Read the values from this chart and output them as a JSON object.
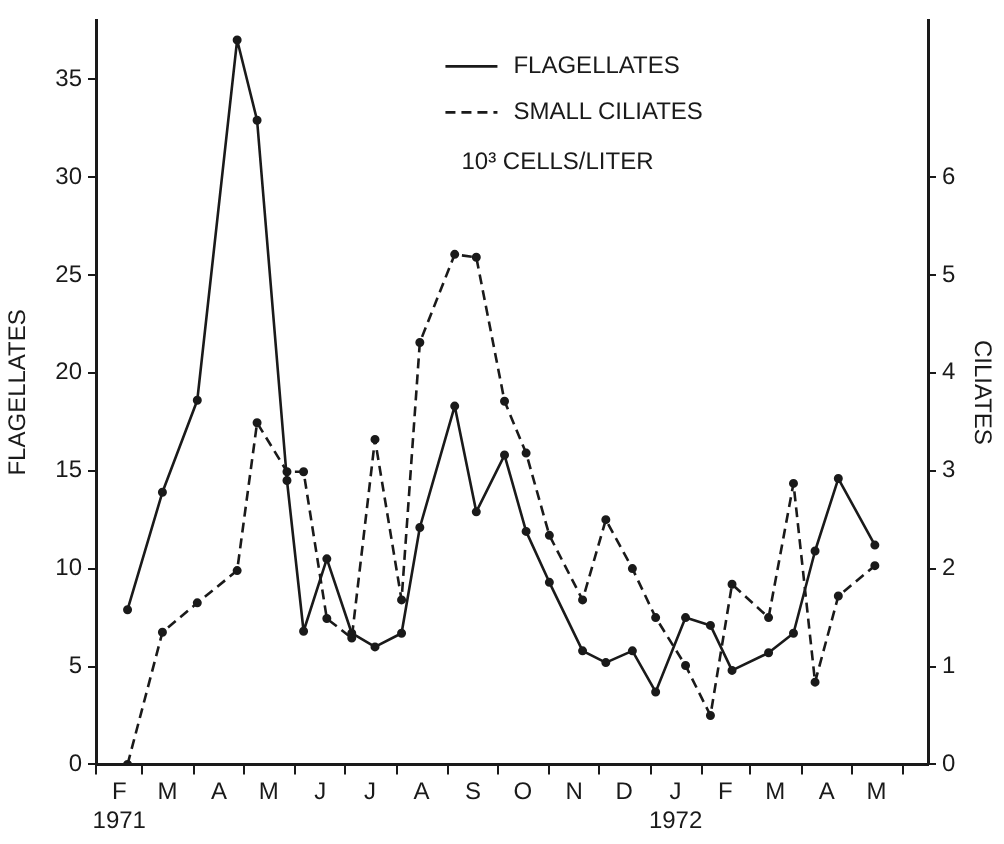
{
  "chart_data": {
    "type": "line",
    "x": [
      "1971-02-20",
      "1971-03-13",
      "1971-04-03",
      "1971-04-27",
      "1971-05-09",
      "1971-05-27",
      "1971-06-06",
      "1971-06-20",
      "1971-07-05",
      "1971-07-19",
      "1971-08-04",
      "1971-08-15",
      "1971-09-05",
      "1971-09-18",
      "1971-10-05",
      "1971-10-18",
      "1971-11-01",
      "1971-11-21",
      "1971-12-05",
      "1971-12-21",
      "1972-01-04",
      "1972-01-22",
      "1972-02-06",
      "1972-02-19",
      "1972-03-12",
      "1972-03-27",
      "1972-04-09",
      "1972-04-23",
      "1972-05-15"
    ],
    "series": [
      {
        "name": "FLAGELLATES",
        "color": "#1a1a1a",
        "line_style": "solid",
        "values": [
          7.9,
          13.9,
          18.6,
          37,
          32.9,
          14.5,
          6.8,
          10.5,
          6.7,
          6.0,
          6.7,
          12.1,
          18.3,
          12.9,
          15.8,
          11.9,
          9.3,
          5.8,
          5.2,
          5.8,
          3.7,
          7.5,
          7.1,
          4.8,
          5.7,
          6.7,
          10.9,
          14.6,
          11.2
        ]
      },
      {
        "name": "SMALL CILIATES",
        "color": "#1a1a1a",
        "line_style": "dashed",
        "axis": "y2",
        "values": [
          0,
          1.35,
          1.65,
          1.98,
          3.49,
          2.99,
          2.99,
          1.49,
          1.29,
          3.32,
          1.68,
          4.31,
          5.21,
          5.18,
          3.71,
          3.18,
          2.34,
          1.68,
          2.5,
          2.0,
          1.5,
          1.01,
          0.5,
          1.84,
          1.5,
          2.87,
          0.84,
          1.72,
          2.03
        ]
      }
    ],
    "ylabel": "FLAGELLATES",
    "y2label": "CILIATES",
    "annotations": [
      "10³ CELLS/LITER"
    ],
    "xlim": [
      "1971-02-01",
      "1972-06-16"
    ],
    "xticks": [
      {
        "value": "1971-02-01",
        "label": null
      },
      {
        "value": "1971-02-15",
        "label": "F\n1971"
      },
      {
        "value": "1971-03-01",
        "label": null
      },
      {
        "value": "1971-03-16",
        "label": "M"
      },
      {
        "value": "1971-04-01",
        "label": null
      },
      {
        "value": "1971-04-16",
        "label": "A"
      },
      {
        "value": "1971-05-01",
        "label": null
      },
      {
        "value": "1971-05-16",
        "label": "M"
      },
      {
        "value": "1971-06-01",
        "label": null
      },
      {
        "value": "1971-06-16",
        "label": "J"
      },
      {
        "value": "1971-07-01",
        "label": null
      },
      {
        "value": "1971-07-16",
        "label": "J"
      },
      {
        "value": "1971-08-01",
        "label": null
      },
      {
        "value": "1971-08-16",
        "label": "A"
      },
      {
        "value": "1971-09-01",
        "label": null
      },
      {
        "value": "1971-09-16",
        "label": "S"
      },
      {
        "value": "1971-10-01",
        "label": null
      },
      {
        "value": "1971-10-16",
        "label": "O"
      },
      {
        "value": "1971-11-01",
        "label": null
      },
      {
        "value": "1971-11-16",
        "label": "N"
      },
      {
        "value": "1971-12-01",
        "label": null
      },
      {
        "value": "1971-12-16",
        "label": "D"
      },
      {
        "value": "1972-01-01",
        "label": null
      },
      {
        "value": "1972-01-16",
        "label": "J\n1972"
      },
      {
        "value": "1972-02-01",
        "label": null
      },
      {
        "value": "1972-02-15",
        "label": "F"
      },
      {
        "value": "1972-03-01",
        "label": null
      },
      {
        "value": "1972-03-16",
        "label": "M"
      },
      {
        "value": "1972-04-01",
        "label": null
      },
      {
        "value": "1972-04-16",
        "label": "A"
      },
      {
        "value": "1972-05-01",
        "label": null
      },
      {
        "value": "1972-05-16",
        "label": "M"
      },
      {
        "value": "1972-06-01",
        "label": null
      }
    ],
    "ylim": [
      0,
      38
    ],
    "yticks": [
      0,
      5,
      10,
      15,
      20,
      25,
      30,
      35
    ],
    "y2lim": [
      0,
      7.6
    ],
    "y2ticks": [
      0,
      1,
      2,
      3,
      4,
      5,
      6
    ],
    "marker": "circle",
    "legend": "top",
    "grid": false
  }
}
